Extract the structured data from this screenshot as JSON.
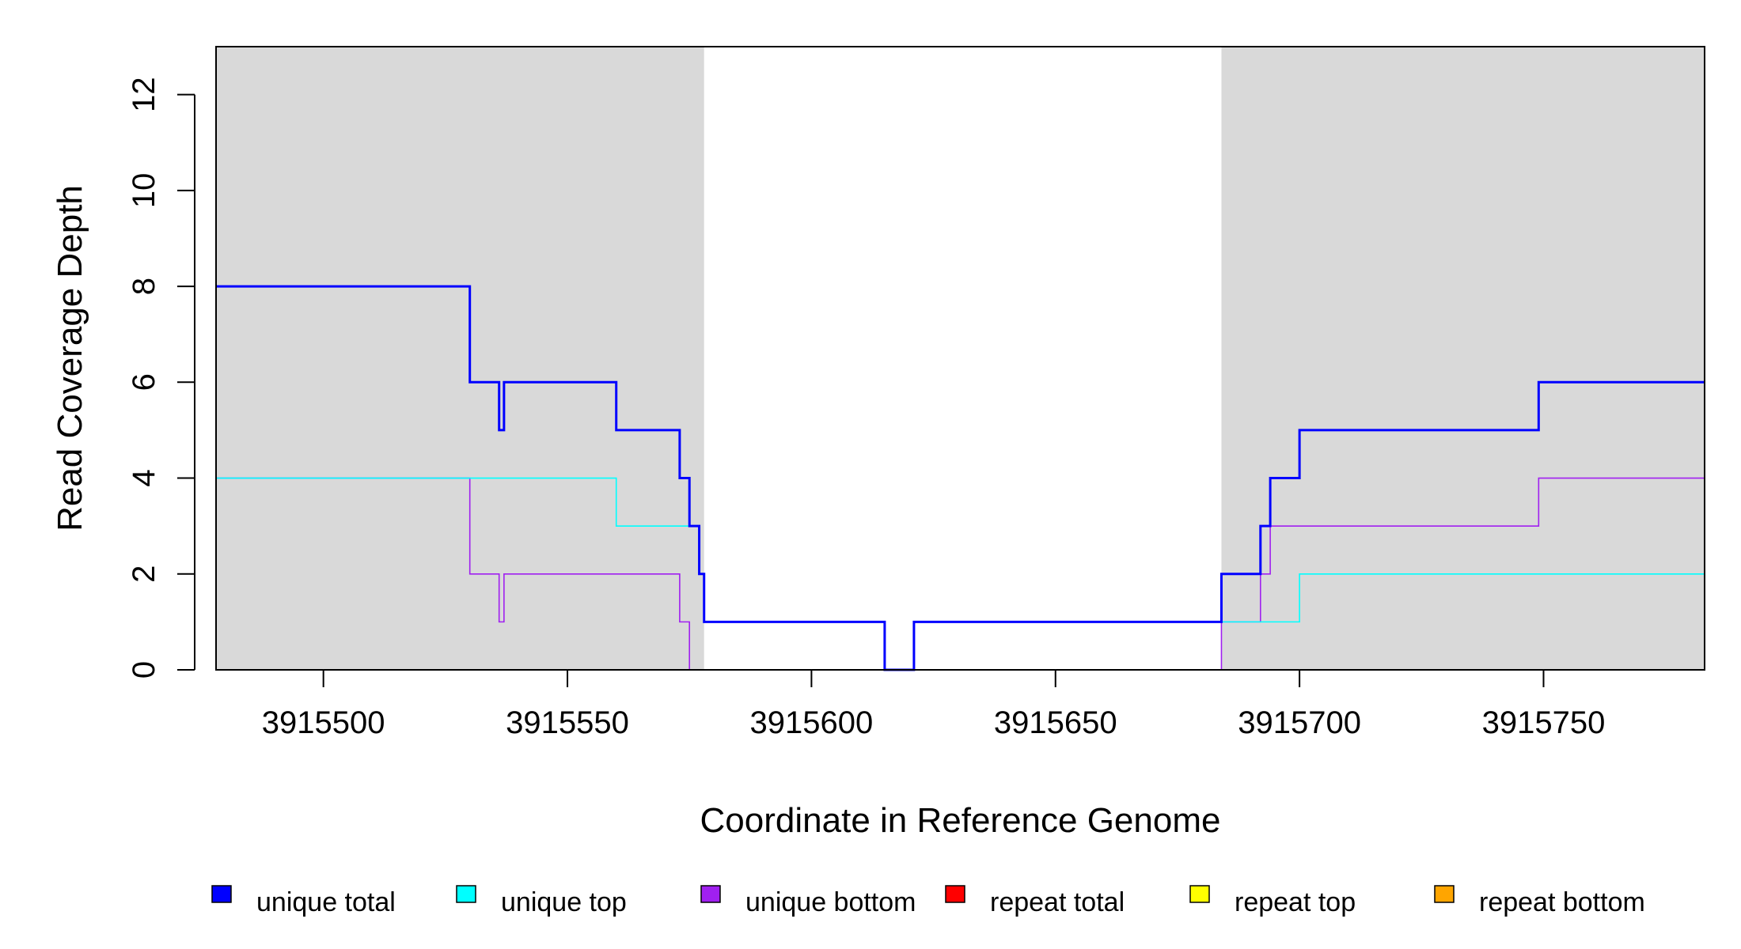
{
  "chart_data": {
    "type": "line",
    "xlabel": "Coordinate in Reference Genome",
    "ylabel": "Read Coverage Depth",
    "xlim": [
      3915478,
      3915783
    ],
    "ylim": [
      0,
      13
    ],
    "x_ticks": [
      3915500,
      3915550,
      3915600,
      3915650,
      3915700,
      3915750
    ],
    "y_ticks": [
      0,
      2,
      4,
      6,
      8,
      10,
      12
    ],
    "shaded_regions": [
      {
        "x0": 3915478,
        "x1": 3915578,
        "color": "#d9d9d9"
      },
      {
        "x0": 3915684,
        "x1": 3915783,
        "color": "#d9d9d9"
      }
    ],
    "series": [
      {
        "name": "unique total",
        "color": "#0000ff",
        "x": [
          3915478,
          3915530,
          3915536,
          3915537,
          3915560,
          3915573,
          3915575,
          3915577,
          3915578,
          3915615,
          3915621,
          3915684,
          3915692,
          3915694,
          3915700,
          3915749,
          3915783
        ],
        "y": [
          8,
          6,
          5,
          6,
          5,
          4,
          3,
          2,
          1,
          0,
          1,
          2,
          3,
          4,
          5,
          6,
          6
        ]
      },
      {
        "name": "unique top",
        "color": "#00ffff",
        "x": [
          3915478,
          3915560,
          3915577,
          3915578,
          3915615,
          3915621,
          3915684,
          3915700,
          3915783
        ],
        "y": [
          4,
          3,
          2,
          1,
          0,
          1,
          1,
          2,
          2
        ]
      },
      {
        "name": "unique bottom",
        "color": "#a020f0",
        "x": [
          3915478,
          3915530,
          3915536,
          3915537,
          3915573,
          3915575,
          3915684,
          3915692,
          3915694,
          3915749,
          3915783
        ],
        "y": [
          4,
          2,
          1,
          2,
          1,
          0,
          1,
          2,
          3,
          4,
          4
        ]
      },
      {
        "name": "repeat total",
        "color": "#ff0000",
        "x": [
          3915478,
          3915783
        ],
        "y": [
          0,
          0
        ]
      },
      {
        "name": "repeat top",
        "color": "#ffff00",
        "x": [
          3915478,
          3915783
        ],
        "y": [
          0,
          0
        ]
      },
      {
        "name": "repeat bottom",
        "color": "#ffa500",
        "x": [
          3915478,
          3915783
        ],
        "y": [
          0,
          0
        ]
      }
    ],
    "legend": {
      "placement": "bottom",
      "items": [
        {
          "label": "unique total",
          "color": "#0000ff"
        },
        {
          "label": "unique top",
          "color": "#00ffff"
        },
        {
          "label": "unique bottom",
          "color": "#a020f0"
        },
        {
          "label": "repeat total",
          "color": "#ff0000"
        },
        {
          "label": "repeat top",
          "color": "#ffff00"
        },
        {
          "label": "repeat bottom",
          "color": "#ffa500"
        }
      ]
    }
  }
}
